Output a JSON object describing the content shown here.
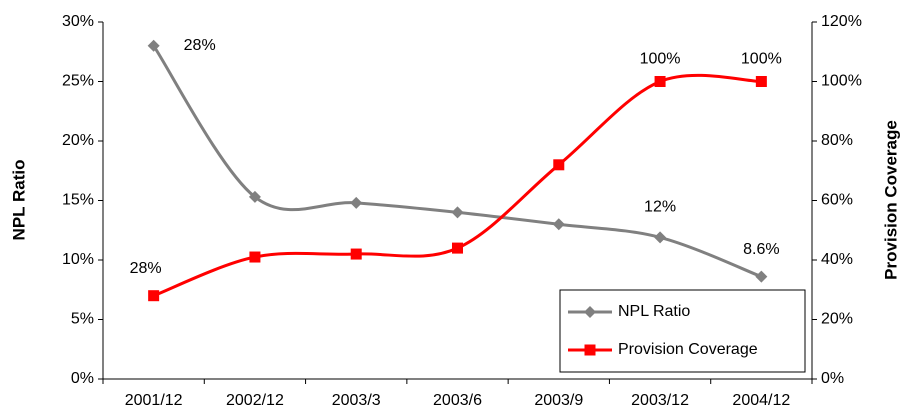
{
  "chart_data": {
    "type": "line",
    "categories": [
      "2001/12",
      "2002/12",
      "2003/3",
      "2003/6",
      "2003/9",
      "2003/12",
      "2004/12"
    ],
    "series": [
      {
        "name": "NPL Ratio",
        "color": "#808080",
        "marker": "diamond",
        "values": [
          28,
          15.3,
          14.8,
          14.0,
          13.0,
          11.9,
          8.6
        ],
        "value_labels": [
          "28%",
          null,
          null,
          null,
          null,
          "12%",
          "8.6%"
        ]
      },
      {
        "name": "Provision Coverage",
        "color": "#ff0000",
        "marker": "square",
        "axis": "y2",
        "values": [
          28,
          41,
          42,
          44,
          72,
          100,
          100
        ],
        "value_labels": [
          "28%",
          null,
          null,
          null,
          null,
          "100%",
          "100%"
        ]
      }
    ],
    "ylabel": "NPL Ratio",
    "y2label": "Provision Coverage",
    "ylim": [
      0,
      30
    ],
    "yticks": [
      {
        "value": 0,
        "label": "0%"
      },
      {
        "value": 5,
        "label": "5%"
      },
      {
        "value": 10,
        "label": "10%"
      },
      {
        "value": 15,
        "label": "15%"
      },
      {
        "value": 20,
        "label": "20%"
      },
      {
        "value": 25,
        "label": "25%"
      },
      {
        "value": 30,
        "label": "30%"
      }
    ],
    "y2lim": [
      0,
      120
    ],
    "y2ticks": [
      {
        "value": 0,
        "label": "0%"
      },
      {
        "value": 20,
        "label": "20%"
      },
      {
        "value": 40,
        "label": "40%"
      },
      {
        "value": 60,
        "label": "60%"
      },
      {
        "value": 80,
        "label": "80%"
      },
      {
        "value": 100,
        "label": "100%"
      },
      {
        "value": 120,
        "label": "120%"
      }
    ],
    "legend": "lower right",
    "grid": false
  }
}
